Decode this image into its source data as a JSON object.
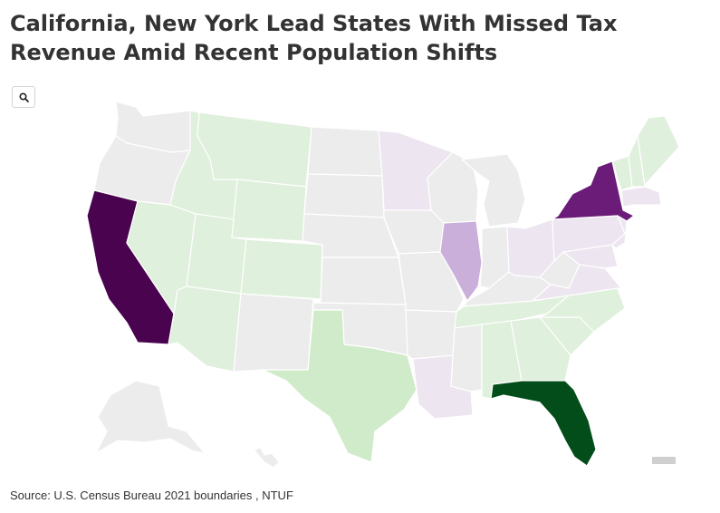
{
  "title_line1": "California, New York Lead States With Missed Tax",
  "title_line2": "Revenue Amid Recent Population Shifts",
  "search_icon": "magnifier-icon",
  "source": "Source: U.S. Census Bureau 2021 boundaries , NTUF",
  "colors": {
    "strong_loss": "#49034f",
    "loss": "#6b1c78",
    "moderate_loss": "#c9afd9",
    "slight_loss": "#ede5f0",
    "neutral": "#ececec",
    "slight_gain": "#dff0dc",
    "moderate_gain": "#d0ebc9",
    "strong_gain": "#034d1a",
    "inset_placeholder": "#cfcfcf"
  },
  "states": {
    "California": "strong_loss",
    "New York": "loss",
    "Illinois": "moderate_loss",
    "Florida": "strong_gain",
    "Texas": "moderate_gain",
    "Arizona": "slight_gain",
    "Nevada": "slight_gain",
    "Idaho": "slight_gain",
    "Montana": "slight_gain",
    "Utah": "slight_gain",
    "Colorado": "slight_gain",
    "Wyoming": "slight_gain",
    "Tennessee": "slight_gain",
    "North Carolina": "slight_gain",
    "South Carolina": "slight_gain",
    "Alabama": "slight_gain",
    "Georgia": "slight_gain",
    "Maine": "slight_gain",
    "New Hampshire": "slight_gain",
    "Vermont": "slight_gain",
    "Minnesota": "slight_loss",
    "Ohio": "slight_loss",
    "Pennsylvania": "slight_loss",
    "New Jersey": "slight_loss",
    "Massachusetts": "slight_loss",
    "Virginia": "slight_loss",
    "Maryland": "slight_loss",
    "Louisiana": "slight_loss",
    "Washington": "neutral",
    "Oregon": "neutral",
    "New Mexico": "neutral",
    "North Dakota": "neutral",
    "South Dakota": "neutral",
    "Nebraska": "neutral",
    "Kansas": "neutral",
    "Oklahoma": "neutral",
    "Iowa": "neutral",
    "Missouri": "neutral",
    "Arkansas": "neutral",
    "Wisconsin": "neutral",
    "Michigan": "neutral",
    "Indiana": "neutral",
    "Kentucky": "neutral",
    "Mississippi": "neutral",
    "West Virginia": "neutral",
    "Alaska": "neutral",
    "Hawaii": "neutral"
  }
}
